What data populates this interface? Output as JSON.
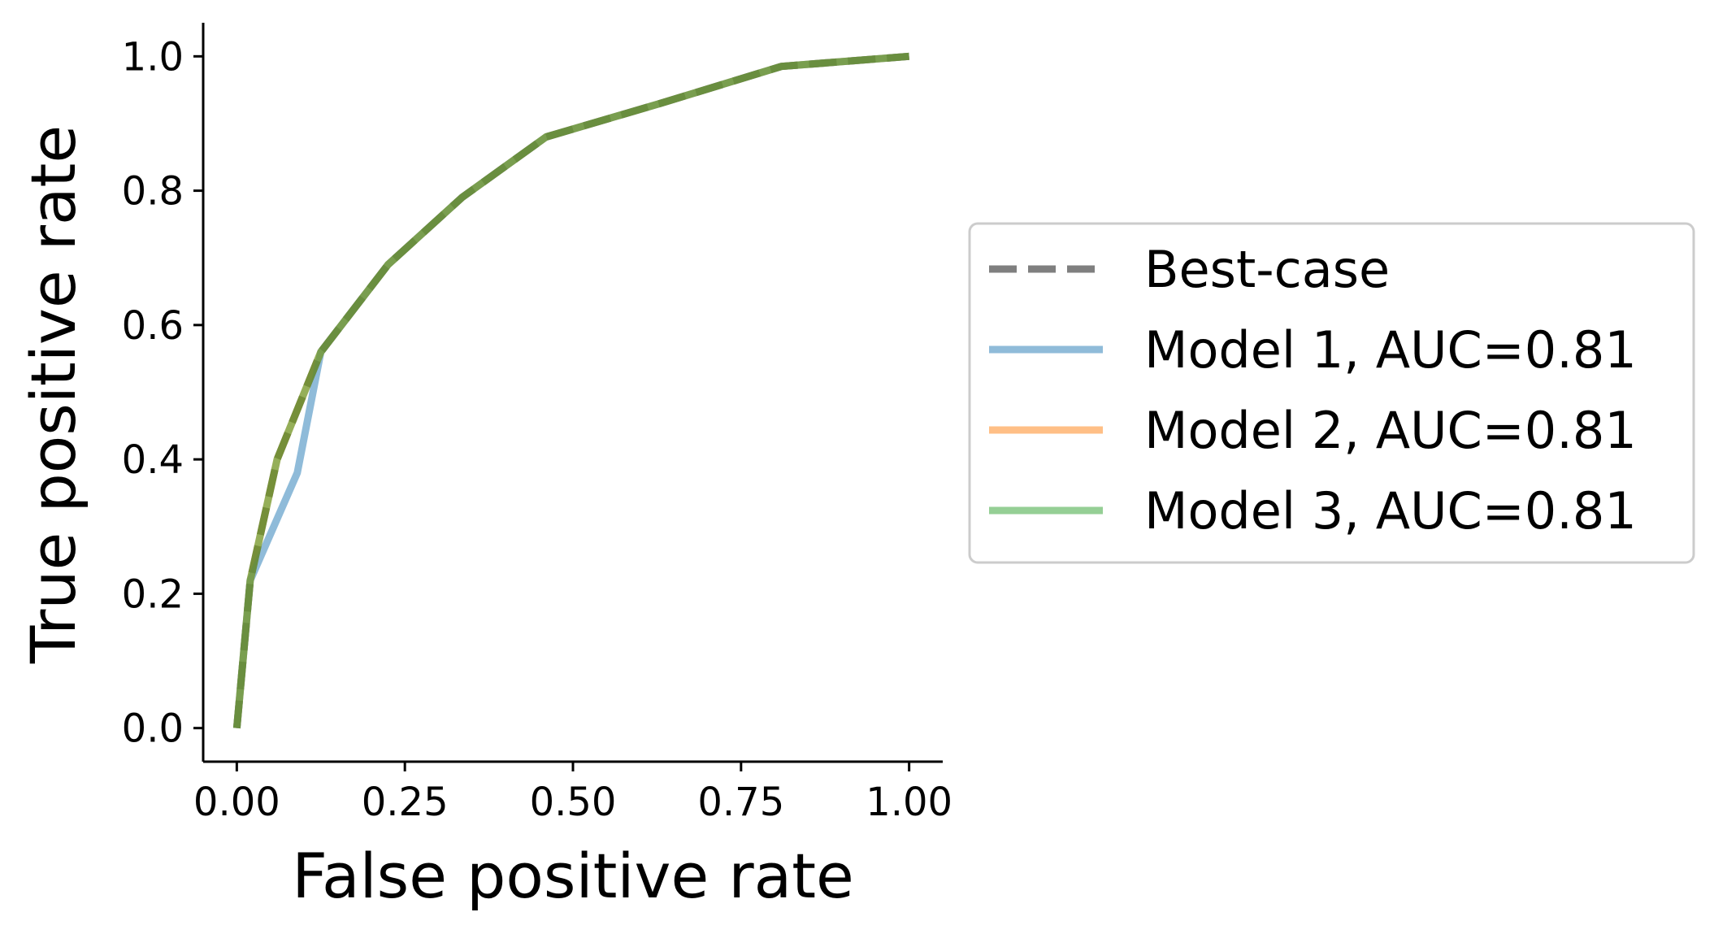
{
  "chart_data": {
    "type": "line",
    "xlabel": "False positive rate",
    "ylabel": "True positive rate",
    "xlim": [
      -0.05,
      1.05
    ],
    "ylim": [
      -0.05,
      1.05
    ],
    "xticks": [
      0.0,
      0.25,
      0.5,
      0.75,
      1.0
    ],
    "xtick_labels": [
      "0.00",
      "0.25",
      "0.50",
      "0.75",
      "1.00"
    ],
    "yticks": [
      0.0,
      0.2,
      0.4,
      0.6,
      0.8,
      1.0
    ],
    "ytick_labels": [
      "0.0",
      "0.2",
      "0.4",
      "0.6",
      "0.8",
      "1.0"
    ],
    "grid": false,
    "legend_position": "center-right outside",
    "series": [
      {
        "name": "Best-case",
        "style": "dashed",
        "color": "#7f7f7f",
        "x": [
          0.0,
          0.02,
          0.06,
          0.125,
          0.225,
          0.335,
          0.46,
          0.63,
          0.81,
          1.0
        ],
        "y": [
          0.0,
          0.22,
          0.4,
          0.56,
          0.69,
          0.79,
          0.88,
          0.93,
          0.985,
          1.0
        ]
      },
      {
        "name": "Model 1, AUC=0.81",
        "style": "solid",
        "color": "#1f77b4",
        "x": [
          0.0,
          0.02,
          0.09,
          0.125,
          0.225,
          0.335,
          0.46,
          0.63,
          0.81,
          1.0
        ],
        "y": [
          0.0,
          0.22,
          0.38,
          0.56,
          0.69,
          0.79,
          0.88,
          0.93,
          0.985,
          1.0
        ]
      },
      {
        "name": "Model 2, AUC=0.81",
        "style": "solid",
        "color": "#ff7f0e",
        "x": [
          0.0,
          0.02,
          0.06,
          0.125,
          0.225,
          0.335,
          0.46,
          0.63,
          0.81,
          1.0
        ],
        "y": [
          0.0,
          0.22,
          0.4,
          0.56,
          0.69,
          0.79,
          0.88,
          0.93,
          0.985,
          1.0
        ]
      },
      {
        "name": "Model 3, AUC=0.81",
        "style": "solid",
        "color": "#2ca02c",
        "x": [
          0.0,
          0.02,
          0.06,
          0.125,
          0.225,
          0.335,
          0.46,
          0.63,
          0.81,
          1.0
        ],
        "y": [
          0.0,
          0.22,
          0.4,
          0.56,
          0.69,
          0.79,
          0.88,
          0.93,
          0.985,
          1.0
        ]
      }
    ]
  }
}
